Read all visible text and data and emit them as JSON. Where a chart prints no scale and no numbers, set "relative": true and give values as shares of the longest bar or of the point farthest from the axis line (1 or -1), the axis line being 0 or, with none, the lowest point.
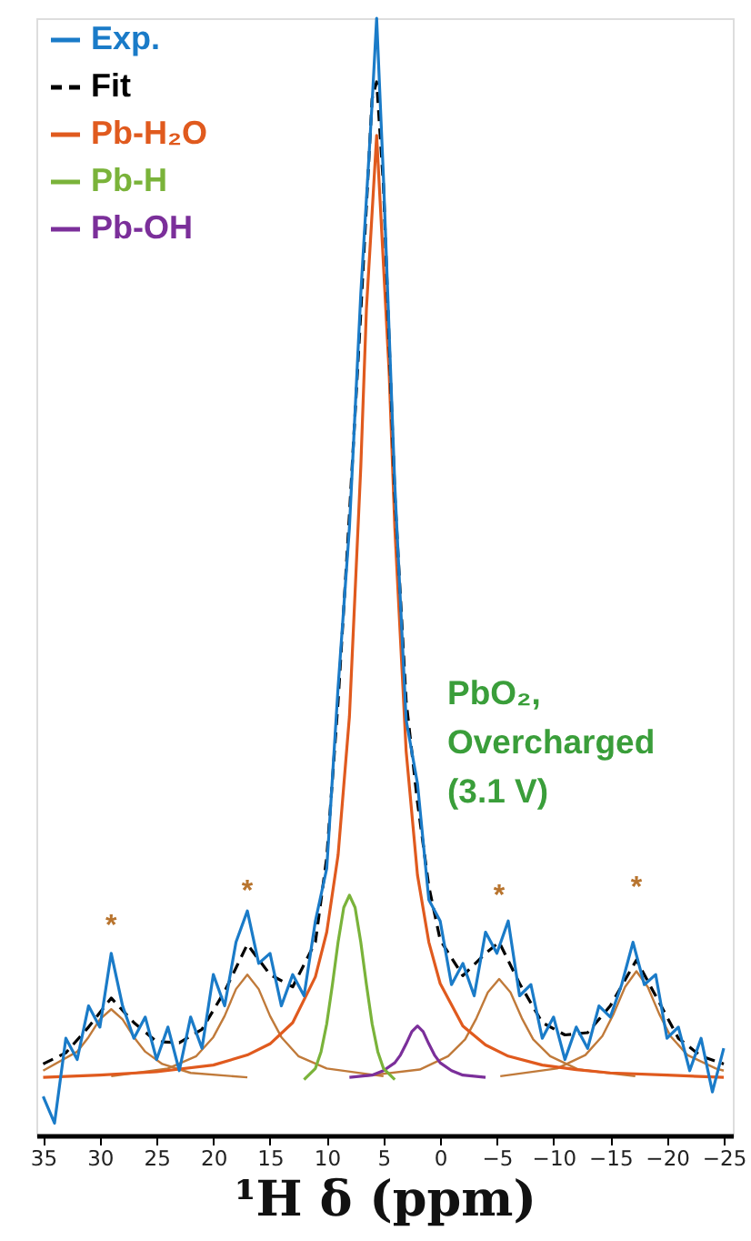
{
  "chart_data": {
    "type": "line",
    "relative": true,
    "xlabel": "¹H δ (ppm)",
    "xlim": [
      35.6,
      -25.8
    ],
    "xticks": [
      35,
      30,
      25,
      20,
      15,
      10,
      5,
      0,
      -5,
      -10,
      -15,
      -20,
      -25
    ],
    "legend": "top left",
    "grid": false,
    "marker": "none",
    "tick_labels": "x",
    "annotations": [
      "PbO₂,\nOvercharged\n(3.1 V)",
      {
        "text": "*",
        "x": 29,
        "y": 0.113
      },
      {
        "text": "*",
        "x": 17,
        "y": 0.144
      },
      {
        "text": "*",
        "x": -5.2,
        "y": 0.14
      },
      {
        "text": "*",
        "x": -17.3,
        "y": 0.147
      }
    ],
    "series": [
      {
        "name": "Exp.",
        "color": "#1a7bc8",
        "line_style": "solid",
        "x": [
          35,
          34,
          33,
          32,
          31,
          30,
          29,
          28,
          27,
          26,
          25,
          24,
          23,
          22,
          21,
          20,
          19,
          18,
          17,
          16,
          15,
          14,
          13,
          12,
          11,
          10,
          9,
          8,
          7,
          6,
          5.6,
          5,
          4,
          3,
          2,
          1,
          0,
          -1,
          -2,
          -3,
          -4,
          -5,
          -6,
          -7,
          -8,
          -9,
          -10,
          -11,
          -12,
          -13,
          -14,
          -15,
          -16,
          -17,
          -18,
          -19,
          -20,
          -21,
          -22,
          -23,
          -24,
          -25
        ],
        "values": [
          0.035,
          0.011,
          0.087,
          0.068,
          0.116,
          0.097,
          0.163,
          0.116,
          0.087,
          0.106,
          0.068,
          0.097,
          0.058,
          0.106,
          0.078,
          0.144,
          0.116,
          0.173,
          0.201,
          0.154,
          0.163,
          0.116,
          0.144,
          0.125,
          0.192,
          0.239,
          0.401,
          0.544,
          0.753,
          0.924,
          1.0,
          0.857,
          0.582,
          0.372,
          0.315,
          0.211,
          0.192,
          0.135,
          0.154,
          0.125,
          0.182,
          0.163,
          0.192,
          0.125,
          0.135,
          0.087,
          0.106,
          0.068,
          0.097,
          0.078,
          0.116,
          0.106,
          0.135,
          0.173,
          0.135,
          0.144,
          0.087,
          0.097,
          0.058,
          0.087,
          0.039,
          0.078
        ]
      },
      {
        "name": "Fit",
        "color": "#000000",
        "line_style": "dashed",
        "x": [
          35,
          33,
          31,
          29,
          27,
          25,
          23,
          21,
          19,
          17,
          15,
          13,
          11,
          10,
          9,
          8,
          7,
          6,
          5.6,
          5,
          4,
          3,
          2,
          1,
          0,
          -2,
          -4,
          -5.2,
          -7,
          -9,
          -11,
          -13,
          -15,
          -17.3,
          -19,
          -21,
          -23,
          -25
        ],
        "values": [
          0.064,
          0.074,
          0.097,
          0.123,
          0.101,
          0.084,
          0.083,
          0.095,
          0.129,
          0.171,
          0.144,
          0.133,
          0.173,
          0.249,
          0.388,
          0.556,
          0.736,
          0.928,
          0.943,
          0.85,
          0.574,
          0.389,
          0.298,
          0.223,
          0.175,
          0.143,
          0.163,
          0.173,
          0.136,
          0.101,
          0.09,
          0.092,
          0.116,
          0.157,
          0.125,
          0.087,
          0.071,
          0.064
        ]
      },
      {
        "name": "Pb-H₂O",
        "color": "#e05a1e",
        "line_style": "solid",
        "x": [
          35,
          30,
          25,
          20,
          17,
          15,
          13,
          11,
          10,
          9,
          8,
          7,
          6.5,
          5.6,
          4.5,
          4,
          3,
          2,
          1,
          0,
          -2,
          -4,
          -6,
          -9,
          -12,
          -15,
          -20,
          -25
        ],
        "values": [
          0.052,
          0.054,
          0.057,
          0.063,
          0.072,
          0.082,
          0.101,
          0.142,
          0.182,
          0.251,
          0.375,
          0.598,
          0.74,
          0.895,
          0.683,
          0.544,
          0.344,
          0.233,
          0.173,
          0.136,
          0.098,
          0.081,
          0.071,
          0.063,
          0.059,
          0.056,
          0.054,
          0.052
        ]
      },
      {
        "name": "Pb-H",
        "color": "#7ab33a",
        "line_style": "solid",
        "x": [
          12,
          11,
          10.5,
          10,
          9.5,
          9,
          8.5,
          8,
          7.5,
          7,
          6.5,
          6,
          5.5,
          5,
          4
        ],
        "values": [
          0.05,
          0.06,
          0.075,
          0.1,
          0.135,
          0.173,
          0.204,
          0.215,
          0.204,
          0.173,
          0.135,
          0.1,
          0.075,
          0.06,
          0.05
        ]
      },
      {
        "name": "Pb-OH",
        "color": "#7b2f9a",
        "line_style": "solid",
        "x": [
          8,
          6,
          5,
          4,
          3.5,
          3,
          2.5,
          2,
          1.5,
          1,
          0.5,
          0,
          -1,
          -2,
          -4
        ],
        "values": [
          0.052,
          0.054,
          0.058,
          0.065,
          0.072,
          0.082,
          0.093,
          0.098,
          0.093,
          0.082,
          0.072,
          0.065,
          0.058,
          0.054,
          0.052
        ]
      },
      {
        "color": "#c07a3a",
        "line_style": "solid",
        "x": [
          35,
          32,
          31,
          30,
          29,
          28,
          27,
          26,
          24.5,
          22,
          17
        ],
        "values": [
          0.058,
          0.075,
          0.088,
          0.104,
          0.113,
          0.104,
          0.088,
          0.075,
          0.064,
          0.056,
          0.052
        ]
      },
      {
        "color": "#c07a3a",
        "line_style": "solid",
        "x": [
          29,
          24,
          21.5,
          20,
          19,
          18,
          17,
          16,
          15,
          14,
          12.5,
          10,
          5
        ],
        "values": [
          0.053,
          0.06,
          0.071,
          0.088,
          0.107,
          0.131,
          0.144,
          0.131,
          0.107,
          0.088,
          0.071,
          0.06,
          0.053
        ]
      },
      {
        "color": "#c07a3a",
        "line_style": "solid",
        "x": [
          6.8,
          1.8,
          -0.7,
          -2.2,
          -3.2,
          -4.2,
          -5.2,
          -6.2,
          -7.2,
          -8.2,
          -9.7,
          -12.2,
          -17.2
        ],
        "values": [
          0.053,
          0.059,
          0.071,
          0.086,
          0.105,
          0.128,
          0.14,
          0.128,
          0.105,
          0.086,
          0.071,
          0.059,
          0.053
        ]
      },
      {
        "color": "#c07a3a",
        "line_style": "solid",
        "x": [
          -5.3,
          -10.3,
          -12.8,
          -14.3,
          -15.3,
          -16.3,
          -17.3,
          -18.3,
          -19.3,
          -20.3,
          -21.8,
          -24.3,
          -25
        ],
        "values": [
          0.053,
          0.06,
          0.072,
          0.089,
          0.109,
          0.133,
          0.147,
          0.133,
          0.109,
          0.089,
          0.072,
          0.06,
          0.058
        ]
      }
    ]
  }
}
